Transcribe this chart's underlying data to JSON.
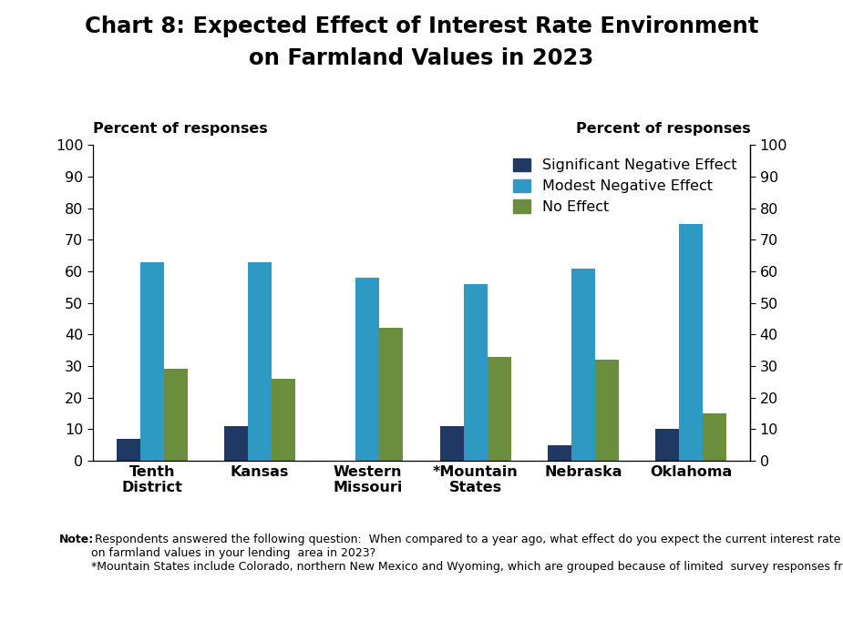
{
  "title_line1": "Chart 8: Expected Effect of Interest Rate Environment",
  "title_line2": "on Farmland Values in 2023",
  "categories": [
    "Tenth\nDistrict",
    "Kansas",
    "Western\nMissouri",
    "*Mountain\nStates",
    "Nebraska",
    "Oklahoma"
  ],
  "series": [
    {
      "name": "Significant Negative Effect",
      "values": [
        7,
        11,
        0,
        11,
        5,
        10
      ],
      "color": "#1f3864"
    },
    {
      "name": "Modest Negative Effect",
      "values": [
        63,
        63,
        58,
        56,
        61,
        75
      ],
      "color": "#2e9ac4"
    },
    {
      "name": "No Effect",
      "values": [
        29,
        26,
        42,
        33,
        32,
        15
      ],
      "color": "#6b8e3e"
    }
  ],
  "ylabel_text": "Percent of responses",
  "ylim": [
    0,
    100
  ],
  "yticks": [
    0,
    10,
    20,
    30,
    40,
    50,
    60,
    70,
    80,
    90,
    100
  ],
  "note_bold": "Note:",
  "note_text": " Respondents answered the following question:  When compared to a year ago, what effect do you expect the current interest rate environment to have\non farmland values in your lending  area in 2023?\n*Mountain States include Colorado, northern New Mexico and Wyoming, which are grouped because of limited  survey responses from each state.",
  "background_color": "#ffffff",
  "bar_width": 0.22
}
